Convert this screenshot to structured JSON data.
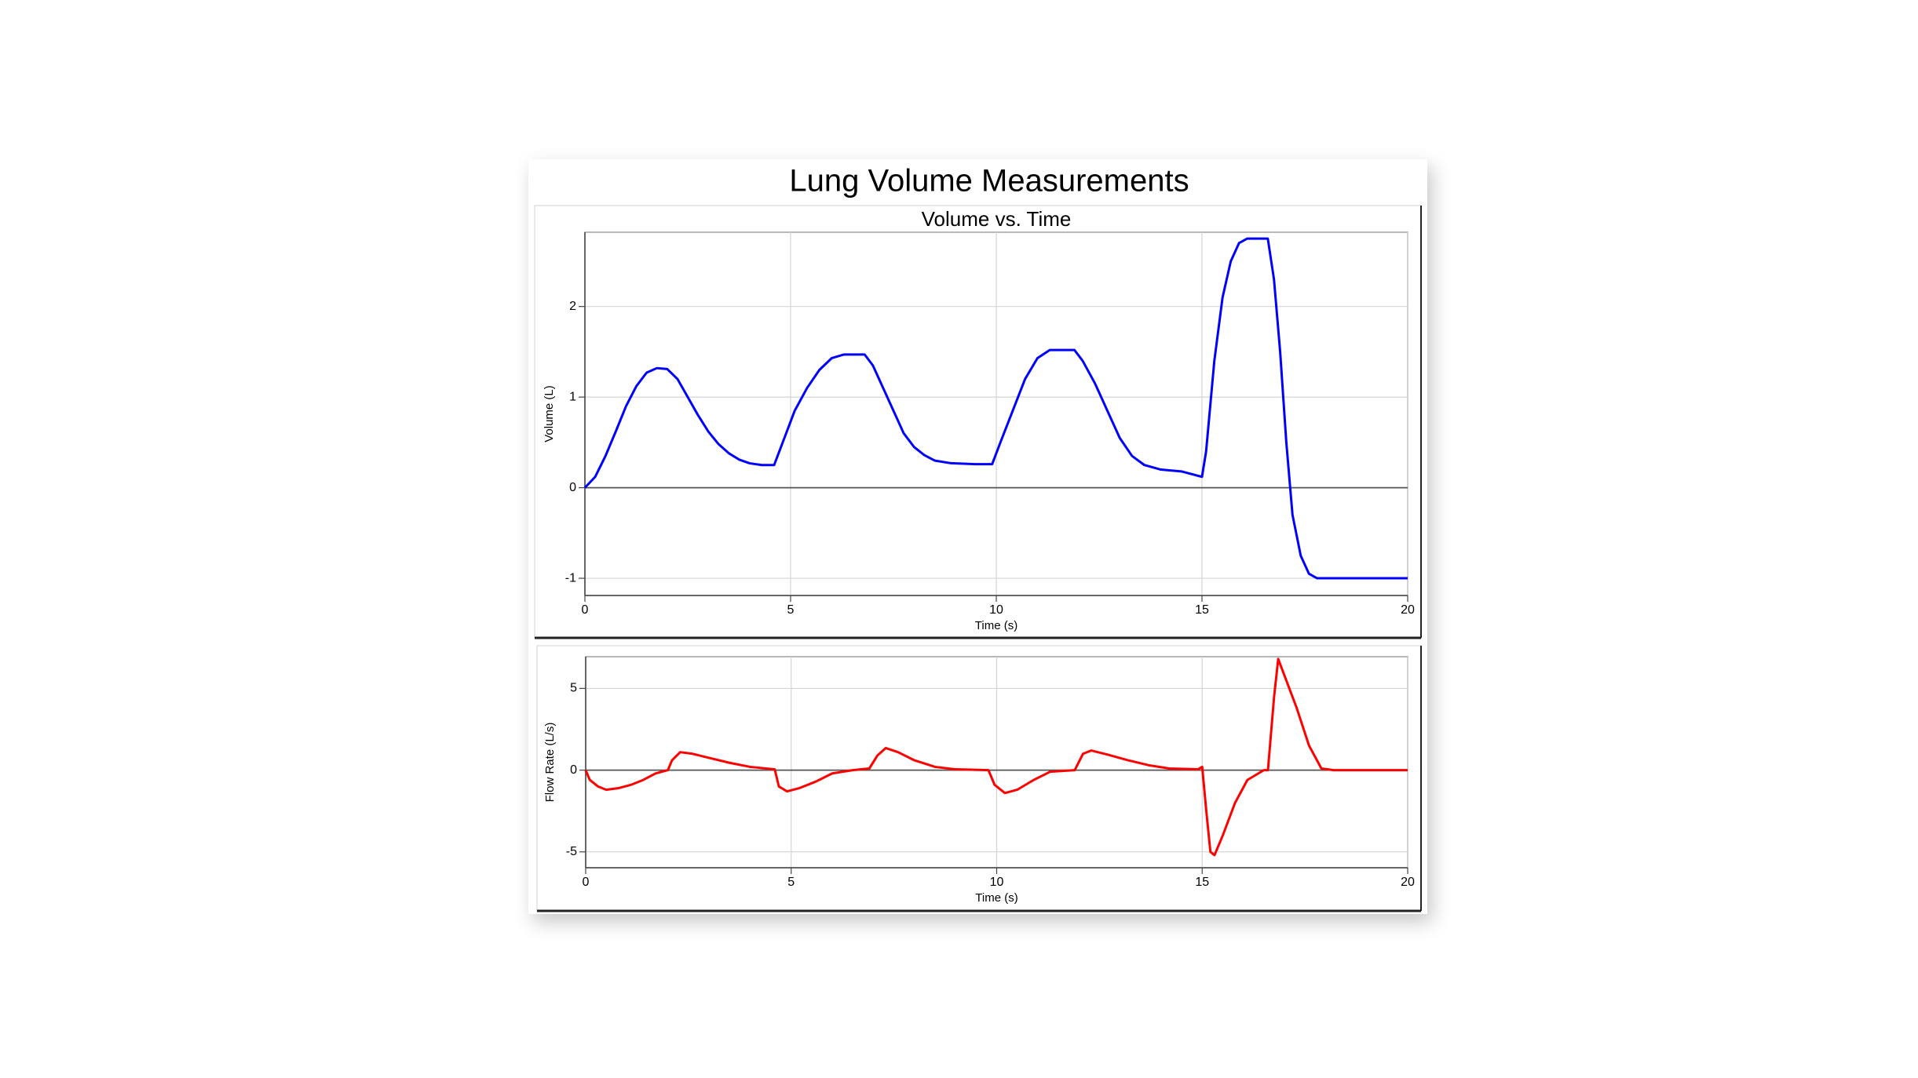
{
  "title": "Lung Volume Measurements",
  "chart_data": [
    {
      "type": "line",
      "title": "Volume vs. Time",
      "xlabel": "Time (s)",
      "ylabel": "Volume (L)",
      "x": [
        0,
        0.25,
        0.5,
        0.75,
        1.0,
        1.25,
        1.5,
        1.75,
        2.0,
        2.25,
        2.5,
        2.75,
        3.0,
        3.25,
        3.5,
        3.75,
        4.0,
        4.3,
        4.6,
        4.85,
        5.1,
        5.4,
        5.7,
        6.0,
        6.3,
        6.8,
        7.0,
        7.25,
        7.5,
        7.75,
        8.0,
        8.25,
        8.5,
        8.9,
        9.5,
        9.9,
        10.1,
        10.4,
        10.7,
        11.0,
        11.3,
        11.9,
        12.1,
        12.4,
        12.7,
        13.0,
        13.3,
        13.6,
        14.0,
        14.5,
        15.0,
        15.1,
        15.3,
        15.5,
        15.7,
        15.9,
        16.1,
        16.6,
        16.75,
        16.9,
        17.05,
        17.2,
        17.4,
        17.6,
        17.8,
        20
      ],
      "series": [
        {
          "color": "#0000ff",
          "values": [
            0,
            0.12,
            0.35,
            0.62,
            0.9,
            1.12,
            1.27,
            1.32,
            1.31,
            1.2,
            1.0,
            0.8,
            0.62,
            0.48,
            0.38,
            0.31,
            0.27,
            0.25,
            0.25,
            0.55,
            0.85,
            1.1,
            1.3,
            1.43,
            1.47,
            1.47,
            1.35,
            1.1,
            0.85,
            0.6,
            0.45,
            0.36,
            0.3,
            0.27,
            0.26,
            0.26,
            0.5,
            0.85,
            1.2,
            1.43,
            1.52,
            1.52,
            1.4,
            1.15,
            0.85,
            0.55,
            0.35,
            0.25,
            0.2,
            0.18,
            0.12,
            0.4,
            1.4,
            2.1,
            2.5,
            2.7,
            2.75,
            2.75,
            2.3,
            1.5,
            0.5,
            -0.3,
            -0.75,
            -0.95,
            -1.0,
            -1.0
          ]
        }
      ],
      "xlim": [
        0,
        20
      ],
      "ylim": [
        -1.19,
        2.82
      ],
      "xticks": [
        0,
        5,
        10,
        15,
        20
      ],
      "yticks": [
        -1,
        0,
        1,
        2
      ],
      "grid": true
    },
    {
      "type": "line",
      "xlabel": "Time (s)",
      "ylabel": "Flow Rate (L/s)",
      "x": [
        0,
        0.1,
        0.3,
        0.5,
        0.8,
        1.1,
        1.4,
        1.7,
        2.0,
        2.1,
        2.3,
        2.6,
        3.0,
        3.5,
        4.0,
        4.6,
        4.7,
        4.9,
        5.2,
        5.6,
        6.0,
        6.5,
        6.9,
        7.1,
        7.3,
        7.6,
        8.0,
        8.5,
        9.0,
        9.8,
        9.95,
        10.2,
        10.5,
        10.9,
        11.3,
        11.9,
        12.1,
        12.3,
        12.7,
        13.2,
        13.7,
        14.2,
        14.9,
        15.0,
        15.1,
        15.2,
        15.3,
        15.5,
        15.8,
        16.1,
        16.5,
        16.6,
        16.75,
        16.85,
        17.0,
        17.3,
        17.6,
        17.9,
        18.2,
        20
      ],
      "series": [
        {
          "color": "#ff0000",
          "values": [
            0,
            -0.6,
            -1.0,
            -1.2,
            -1.1,
            -0.9,
            -0.6,
            -0.2,
            0,
            0.6,
            1.1,
            1.0,
            0.75,
            0.45,
            0.2,
            0.05,
            -1.0,
            -1.3,
            -1.1,
            -0.7,
            -0.2,
            0,
            0.1,
            0.9,
            1.35,
            1.1,
            0.6,
            0.2,
            0.05,
            0,
            -0.9,
            -1.4,
            -1.2,
            -0.6,
            -0.1,
            0,
            1.0,
            1.2,
            0.95,
            0.6,
            0.3,
            0.1,
            0.05,
            0.2,
            -2.5,
            -5.0,
            -5.2,
            -4.0,
            -2.0,
            -0.6,
            0,
            0,
            4.5,
            6.8,
            5.8,
            3.8,
            1.5,
            0.1,
            0,
            0
          ]
        }
      ],
      "xlim": [
        0,
        20
      ],
      "ylim": [
        -5.97,
        6.94
      ],
      "xticks": [
        0,
        5,
        10,
        15,
        20
      ],
      "yticks": [
        -5,
        0,
        5
      ],
      "grid": true
    }
  ]
}
